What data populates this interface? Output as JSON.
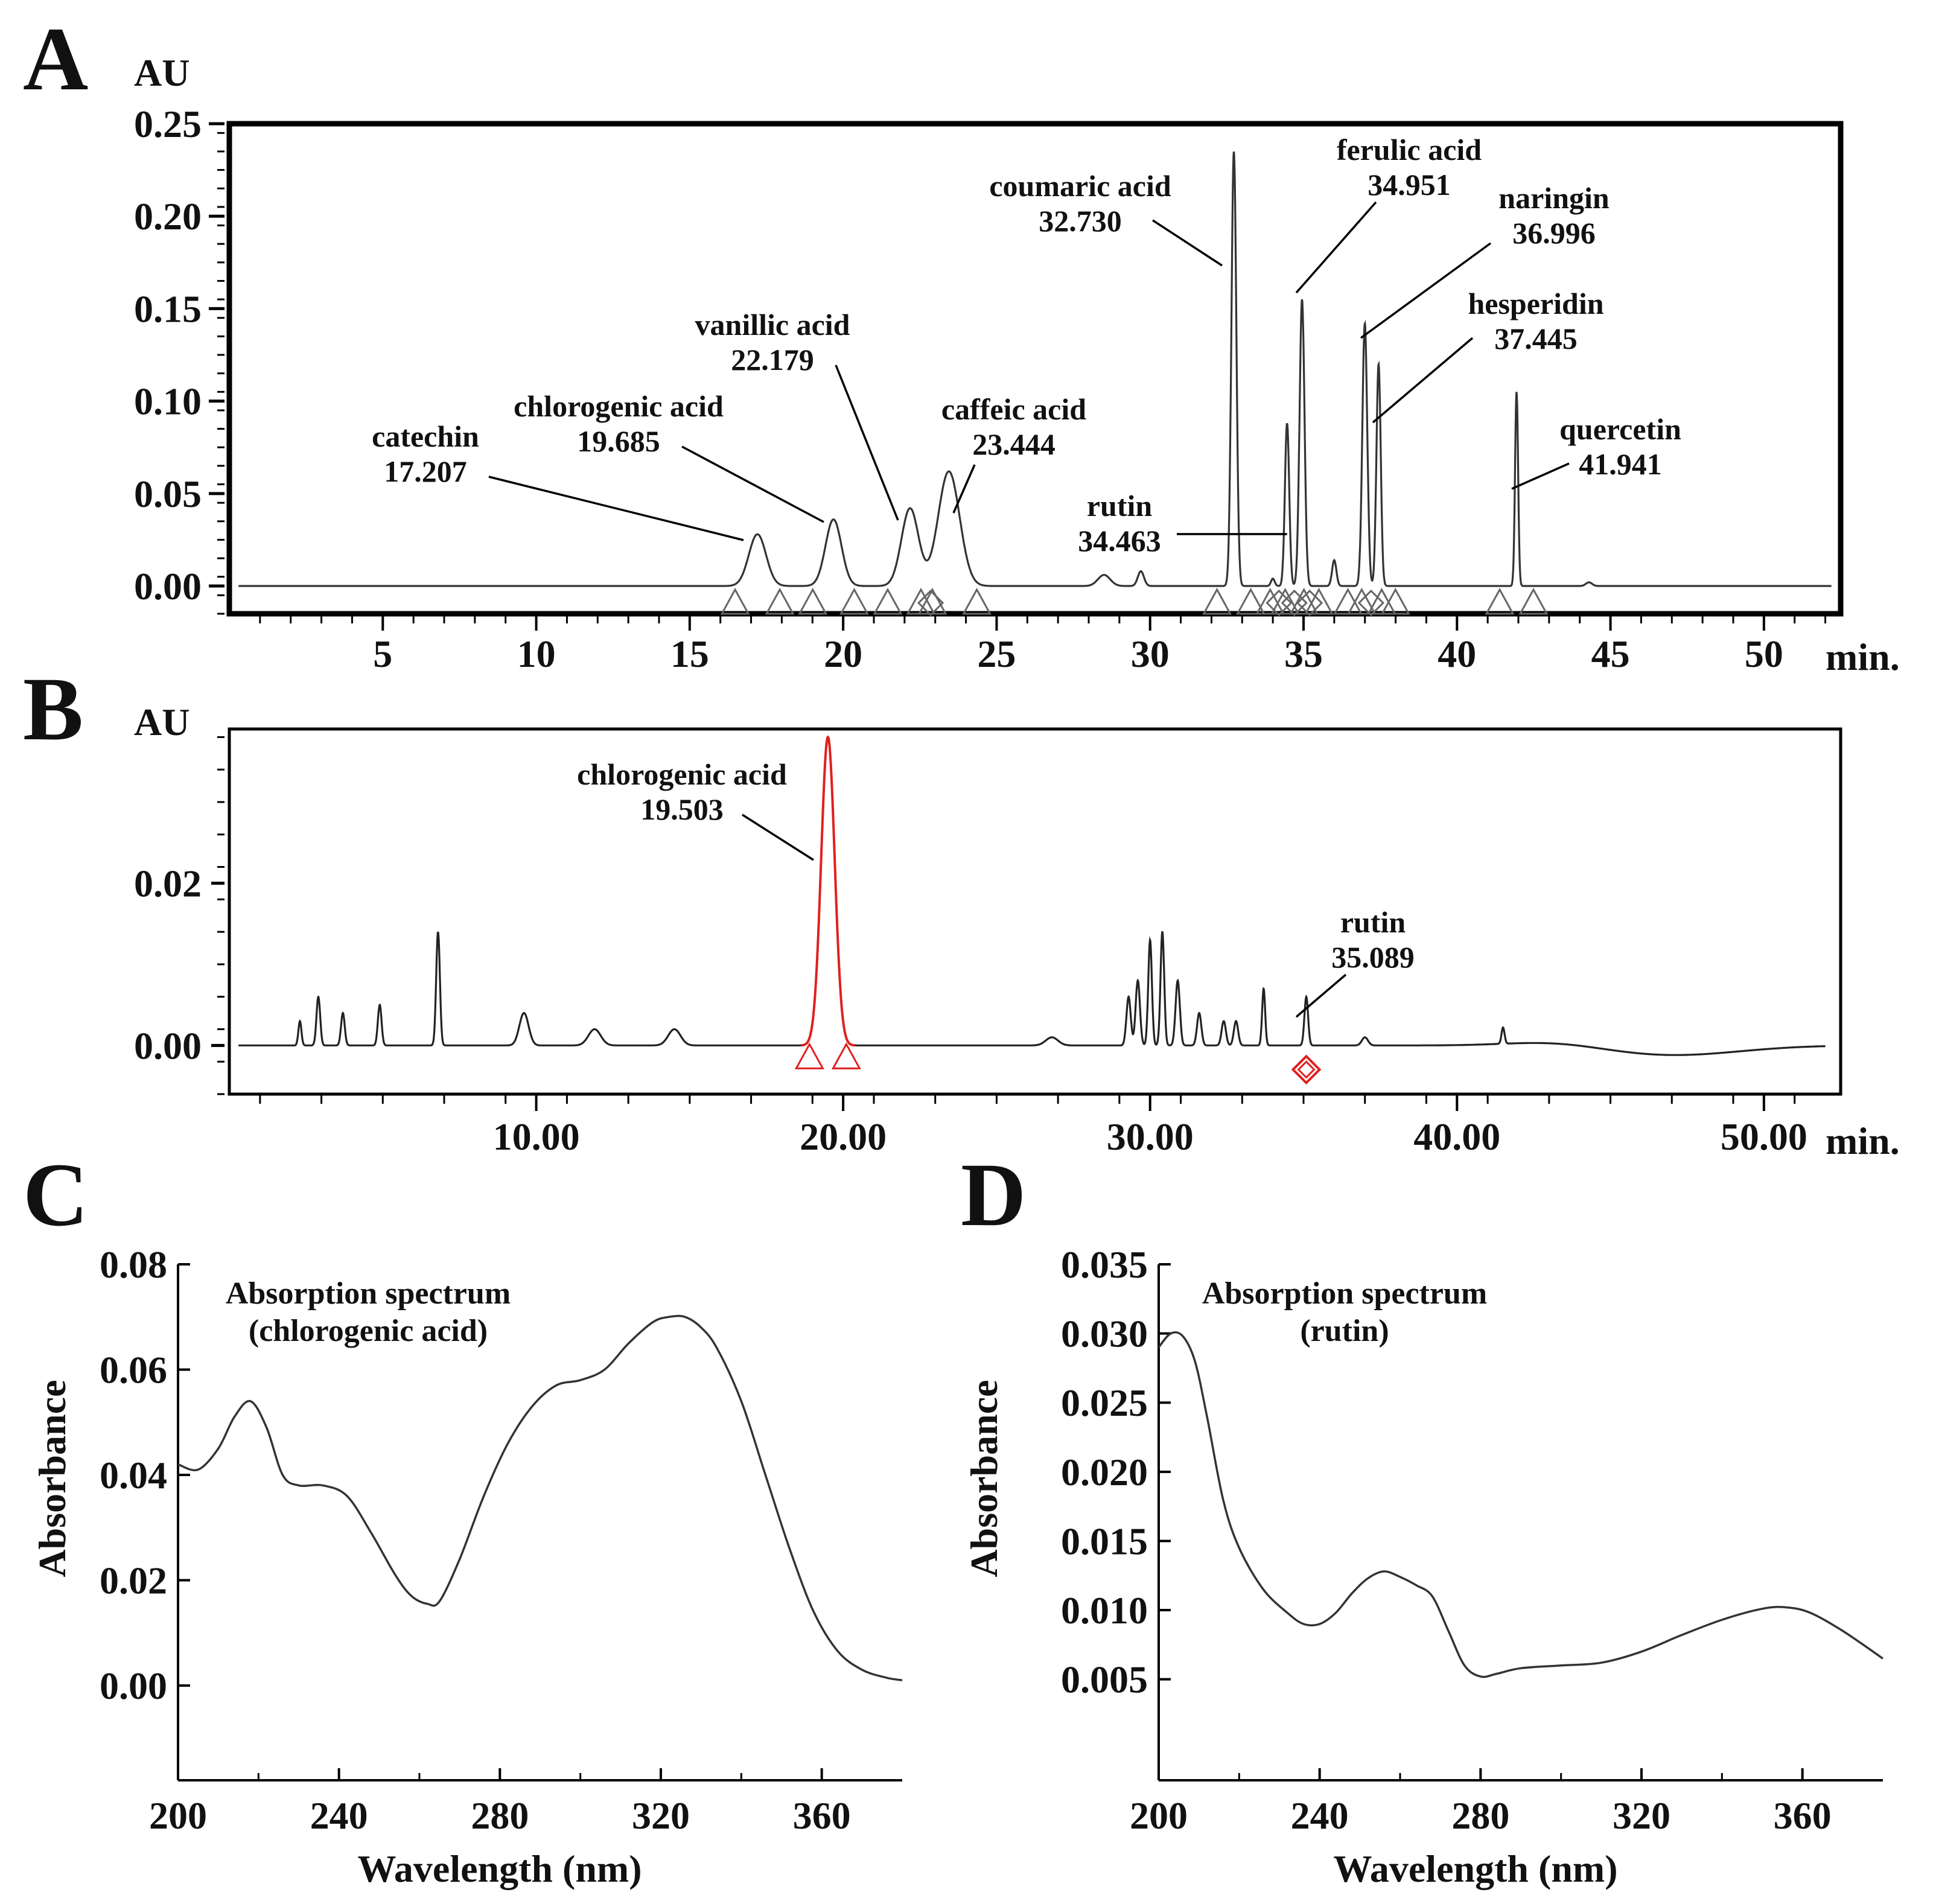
{
  "chart_data": [
    {
      "panel": "A",
      "type": "line",
      "ylabel": "AU",
      "xlabel": "min.",
      "xlim": [
        0,
        52.5
      ],
      "ylim": [
        -0.015,
        0.25
      ],
      "xticks": [
        5,
        10,
        15,
        20,
        25,
        30,
        35,
        40,
        45,
        50
      ],
      "xtick_labels": [
        "5",
        "10",
        "15",
        "20",
        "25",
        "30",
        "35",
        "40",
        "45",
        "50"
      ],
      "yticks": [
        0.0,
        0.05,
        0.1,
        0.15,
        0.2,
        0.25
      ],
      "ytick_labels": [
        "0.00",
        "0.05",
        "0.10",
        "0.15",
        "0.20",
        "0.25"
      ],
      "peaks": [
        {
          "name": "catechin",
          "rt_label": "17.207",
          "rt": 17.207,
          "height": 0.028,
          "width": 0.28
        },
        {
          "name": "chlorogenic acid",
          "rt_label": "19.685",
          "rt": 19.685,
          "height": 0.036,
          "width": 0.26
        },
        {
          "name": "vanillic acid",
          "rt_label": "22.179",
          "rt": 22.179,
          "height": 0.042,
          "width": 0.28
        },
        {
          "name": "caffeic acid",
          "rt_label": "23.444",
          "rt": 23.444,
          "height": 0.062,
          "width": 0.35
        },
        {
          "name": "coumaric acid",
          "rt_label": "32.730",
          "rt": 32.73,
          "height": 0.235,
          "width": 0.08
        },
        {
          "name": "rutin",
          "rt_label": "34.463",
          "rt": 34.463,
          "height": 0.088,
          "width": 0.07
        },
        {
          "name": "ferulic acid",
          "rt_label": "34.951",
          "rt": 34.951,
          "height": 0.155,
          "width": 0.08
        },
        {
          "name": "naringin",
          "rt_label": "36.996",
          "rt": 36.996,
          "height": 0.142,
          "width": 0.08
        },
        {
          "name": "hesperidin",
          "rt_label": "37.445",
          "rt": 37.445,
          "height": 0.12,
          "width": 0.07
        },
        {
          "name": "quercetin",
          "rt_label": "41.941",
          "rt": 41.941,
          "height": 0.105,
          "width": 0.05
        }
      ],
      "minor_peaks": [
        {
          "rt": 28.5,
          "height": 0.006,
          "width": 0.2
        },
        {
          "rt": 29.7,
          "height": 0.008,
          "width": 0.1
        },
        {
          "rt": 34.0,
          "height": 0.004,
          "width": 0.06
        },
        {
          "rt": 36.0,
          "height": 0.014,
          "width": 0.07
        },
        {
          "rt": 44.3,
          "height": 0.002,
          "width": 0.1
        }
      ],
      "line_color": "#333333"
    },
    {
      "panel": "B",
      "type": "line",
      "ylabel": "AU",
      "xlabel": "min.",
      "xlim": [
        0,
        52.5
      ],
      "ylim": [
        -0.006,
        0.039
      ],
      "xticks": [
        10,
        20,
        30,
        40,
        50
      ],
      "xtick_labels": [
        "10.00",
        "20.00",
        "30.00",
        "40.00",
        "50.00"
      ],
      "yticks": [
        0.0,
        0.02
      ],
      "ytick_labels": [
        "0.00",
        "0.02"
      ],
      "peaks": [
        {
          "name": "chlorogenic acid",
          "rt_label": "19.503",
          "rt": 19.503,
          "height": 0.038,
          "width": 0.22
        },
        {
          "name": "rutin",
          "rt_label": "35.089",
          "rt": 35.089,
          "height": 0.006,
          "width": 0.06
        }
      ],
      "minor_peaks": [
        {
          "rt": 2.3,
          "height": 0.003,
          "width": 0.05
        },
        {
          "rt": 2.9,
          "height": 0.006,
          "width": 0.06
        },
        {
          "rt": 3.7,
          "height": 0.004,
          "width": 0.06
        },
        {
          "rt": 4.9,
          "height": 0.005,
          "width": 0.06
        },
        {
          "rt": 6.8,
          "height": 0.014,
          "width": 0.06
        },
        {
          "rt": 9.6,
          "height": 0.004,
          "width": 0.15
        },
        {
          "rt": 11.9,
          "height": 0.002,
          "width": 0.2
        },
        {
          "rt": 14.5,
          "height": 0.002,
          "width": 0.2
        },
        {
          "rt": 26.8,
          "height": 0.001,
          "width": 0.2
        },
        {
          "rt": 29.3,
          "height": 0.006,
          "width": 0.07
        },
        {
          "rt": 29.6,
          "height": 0.008,
          "width": 0.07
        },
        {
          "rt": 30.0,
          "height": 0.013,
          "width": 0.06
        },
        {
          "rt": 30.4,
          "height": 0.014,
          "width": 0.06
        },
        {
          "rt": 30.9,
          "height": 0.008,
          "width": 0.07
        },
        {
          "rt": 31.6,
          "height": 0.004,
          "width": 0.07
        },
        {
          "rt": 32.4,
          "height": 0.003,
          "width": 0.07
        },
        {
          "rt": 32.8,
          "height": 0.003,
          "width": 0.07
        },
        {
          "rt": 33.7,
          "height": 0.007,
          "width": 0.05
        },
        {
          "rt": 37.0,
          "height": 0.001,
          "width": 0.1
        },
        {
          "rt": 41.5,
          "height": 0.002,
          "width": 0.05
        }
      ],
      "highlight_color": "#e02020",
      "line_color": "#222222"
    },
    {
      "panel": "C",
      "type": "line",
      "title": "Absorption spectrum (chlorogenic acid)",
      "title_lines": [
        "Absorption spectrum",
        "(chlorogenic acid)"
      ],
      "xlabel": "Wavelength (nm)",
      "ylabel": "Absorbance",
      "xlim": [
        200,
        380
      ],
      "ylim": [
        -0.018,
        0.08
      ],
      "xticks": [
        200,
        240,
        280,
        320,
        360
      ],
      "xtick_labels": [
        "200",
        "240",
        "280",
        "320",
        "360"
      ],
      "yticks": [
        0.0,
        0.02,
        0.04,
        0.06,
        0.08
      ],
      "ytick_labels": [
        "0.00",
        "0.02",
        "0.04",
        "0.06",
        "0.08"
      ],
      "x": [
        200,
        205,
        210,
        214,
        218,
        222,
        226,
        230,
        236,
        242,
        248,
        254,
        258,
        262,
        265,
        270,
        276,
        282,
        288,
        294,
        300,
        306,
        312,
        318,
        322,
        326,
        330,
        334,
        340,
        346,
        352,
        358,
        364,
        370,
        376,
        380
      ],
      "y": [
        0.042,
        0.041,
        0.045,
        0.051,
        0.054,
        0.049,
        0.04,
        0.038,
        0.038,
        0.036,
        0.029,
        0.021,
        0.017,
        0.0155,
        0.016,
        0.024,
        0.036,
        0.046,
        0.053,
        0.057,
        0.058,
        0.06,
        0.065,
        0.069,
        0.07,
        0.07,
        0.068,
        0.064,
        0.054,
        0.04,
        0.026,
        0.014,
        0.0065,
        0.003,
        0.0015,
        0.001
      ],
      "line_color": "#333333"
    },
    {
      "panel": "D",
      "type": "line",
      "title": "Absorption spectrum (rutin)",
      "title_lines": [
        "Absorption spectrum",
        "(rutin)"
      ],
      "xlabel": "Wavelength (nm)",
      "ylabel": "Absorbance",
      "xlim": [
        200,
        380
      ],
      "ylim": [
        -0.0023,
        0.035
      ],
      "xticks": [
        200,
        240,
        280,
        320,
        360
      ],
      "xtick_labels": [
        "200",
        "240",
        "280",
        "320",
        "360"
      ],
      "yticks": [
        0.005,
        0.01,
        0.015,
        0.02,
        0.025,
        0.03,
        0.035
      ],
      "ytick_labels": [
        "0.005",
        "0.010",
        "0.015",
        "0.020",
        "0.025",
        "0.030",
        "0.035"
      ],
      "x": [
        200,
        203,
        206,
        209,
        212,
        216,
        220,
        226,
        232,
        236,
        240,
        244,
        248,
        252,
        256,
        260,
        264,
        268,
        272,
        276,
        280,
        284,
        290,
        300,
        310,
        320,
        330,
        340,
        350,
        356,
        362,
        370,
        380
      ],
      "y": [
        0.029,
        0.03,
        0.0298,
        0.028,
        0.024,
        0.018,
        0.0145,
        0.0115,
        0.0098,
        0.009,
        0.009,
        0.0098,
        0.0112,
        0.0123,
        0.0128,
        0.0124,
        0.0118,
        0.011,
        0.0085,
        0.006,
        0.0052,
        0.0054,
        0.0058,
        0.006,
        0.0062,
        0.007,
        0.0082,
        0.0093,
        0.0101,
        0.0102,
        0.0098,
        0.0085,
        0.0065
      ],
      "line_color": "#333333"
    }
  ]
}
